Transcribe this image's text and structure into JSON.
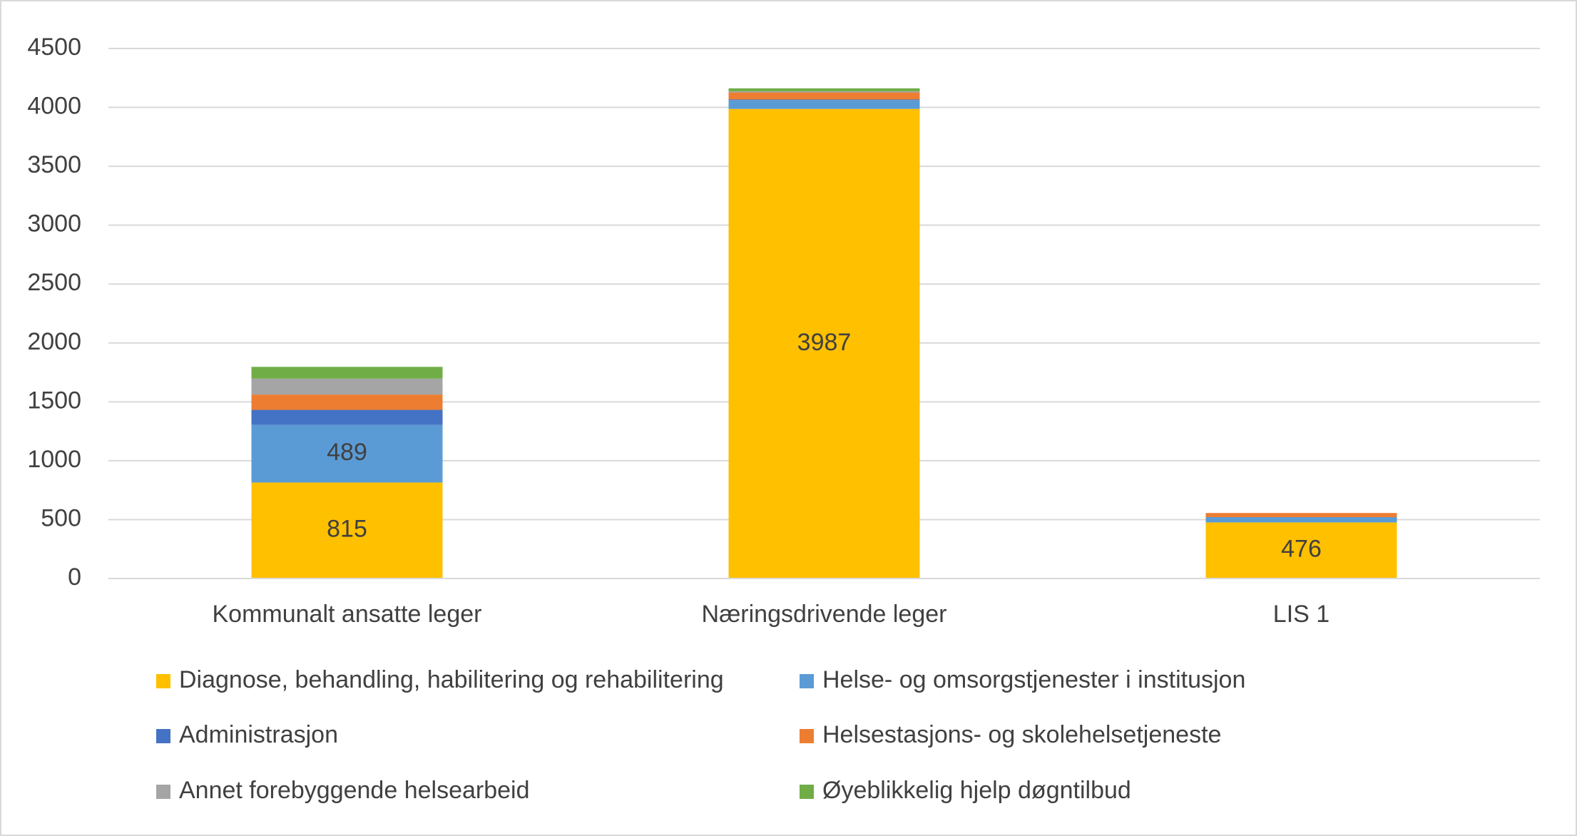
{
  "chart_data": {
    "type": "stacked_bar",
    "categories": [
      "Kommunalt ansatte leger",
      "Næringsdrivende leger",
      "LIS 1"
    ],
    "series": [
      {
        "name": "Diagnose, behandling, habilitering og rehabilitering",
        "color": "#FFC000",
        "values": [
          815,
          3987,
          476
        ]
      },
      {
        "name": "Helse- og omsorgstjenester i institusjon",
        "color": "#5B9BD5",
        "values": [
          489,
          75,
          45
        ]
      },
      {
        "name": "Administrasjon",
        "color": "#4472C4",
        "values": [
          128,
          5,
          0
        ]
      },
      {
        "name": "Helsestasjons- og skolehelsetjeneste",
        "color": "#ED7D31",
        "values": [
          130,
          60,
          35
        ]
      },
      {
        "name": "Annet forebyggende helsearbeid",
        "color": "#A5A5A5",
        "values": [
          135,
          10,
          0
        ]
      },
      {
        "name": "Øyeblikkelig hjelp døgntilbud",
        "color": "#70AD47",
        "values": [
          100,
          25,
          0
        ]
      }
    ],
    "ylim": [
      0,
      4500
    ],
    "yticks": [
      0,
      500,
      1000,
      1500,
      2000,
      2500,
      3000,
      3500,
      4000,
      4500
    ],
    "grid": true
  }
}
